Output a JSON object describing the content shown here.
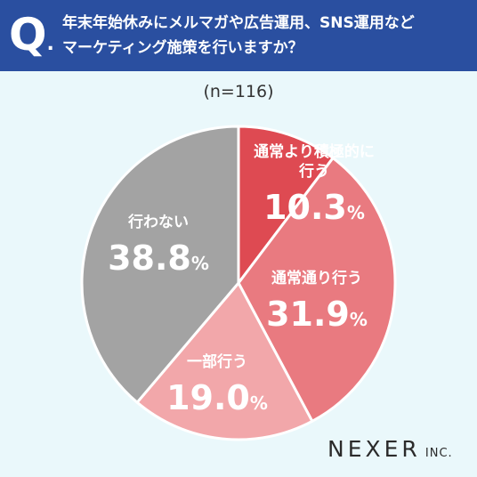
{
  "header": {
    "q_mark": "Q",
    "q_dot": ".",
    "question_lines": [
      "年末年始休みにメルマガや広告運用、SNS運用など",
      "マーケティング施策を行いますか？"
    ],
    "background": "#2a4fa0"
  },
  "chart_data": {
    "type": "pie",
    "sample_label": "(n=116)",
    "start_angle_deg": 0,
    "direction": "clockwise",
    "categories": [
      "通常より積極的に行う",
      "通常通り行う",
      "一部行う",
      "行わない"
    ],
    "values": [
      10.3,
      31.9,
      19.0,
      38.8
    ],
    "value_unit": "%",
    "colors": [
      "#de4a52",
      "#e97a80",
      "#f2a7aa",
      "#a3a3a3"
    ],
    "label_lines": [
      [
        "通常より積極的に",
        "行う"
      ],
      [
        "通常通り行う"
      ],
      [
        "一部行う"
      ],
      [
        "行わない"
      ]
    ],
    "value_labels": [
      "10.3",
      "31.9",
      "19.0",
      "38.8"
    ]
  },
  "logo": {
    "main": "NEXER",
    "suffix": "INC."
  }
}
